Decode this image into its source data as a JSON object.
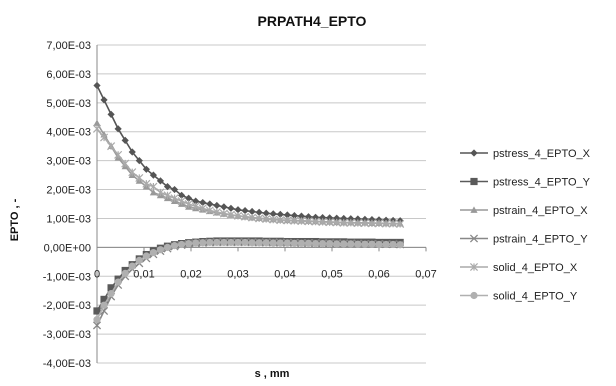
{
  "chart_data": {
    "type": "line",
    "title": "PRPATH4_EPTO",
    "xlabel": "s , mm",
    "ylabel": "EPTO , -",
    "xlim": [
      0,
      0.07
    ],
    "ylim": [
      -0.004,
      0.007
    ],
    "x_tick_labels": [
      "0",
      "0,01",
      "0,02",
      "0,03",
      "0,04",
      "0,05",
      "0,06",
      "0,07"
    ],
    "y_tick_labels": [
      "-4,00E-03",
      "-3,00E-03",
      "-2,00E-03",
      "-1,00E-03",
      "0,00E+00",
      "1,00E-03",
      "2,00E-03",
      "3,00E-03",
      "4,00E-03",
      "5,00E-03",
      "6,00E-03",
      "7,00E-03"
    ],
    "grid": "horizontal",
    "legend_position": "right",
    "x_start": 0,
    "x_step": 0.0015,
    "series": [
      {
        "name": "pstress_4_EPTO_X",
        "marker": "diamond",
        "color": "#555555",
        "values": [
          0.0056,
          0.0051,
          0.0046,
          0.0041,
          0.0037,
          0.0033,
          0.003,
          0.0027,
          0.0025,
          0.0023,
          0.0021,
          0.002,
          0.0018,
          0.0017,
          0.0016,
          0.00155,
          0.0015,
          0.00145,
          0.0014,
          0.00135,
          0.0013,
          0.00127,
          0.00124,
          0.00121,
          0.00118,
          0.00116,
          0.00114,
          0.00112,
          0.0011,
          0.00108,
          0.00106,
          0.00104,
          0.00103,
          0.00102,
          0.00101,
          0.001,
          0.00099,
          0.00098,
          0.00097,
          0.00096,
          0.00095,
          0.00094,
          0.00093,
          0.00092
        ]
      },
      {
        "name": "pstress_4_EPTO_Y",
        "marker": "square",
        "color": "#5a5a5a",
        "values": [
          -0.0022,
          -0.0018,
          -0.0014,
          -0.0011,
          -0.0008,
          -0.0006,
          -0.0004,
          -0.00025,
          -0.00012,
          -3e-05,
          4e-05,
          9e-05,
          0.00013,
          0.00016,
          0.00018,
          0.0002,
          0.00021,
          0.00022,
          0.00022,
          0.00022,
          0.00022,
          0.00022,
          0.00022,
          0.00022,
          0.00021,
          0.00021,
          0.00021,
          0.0002,
          0.0002,
          0.0002,
          0.0002,
          0.0002,
          0.00019,
          0.00019,
          0.00019,
          0.00019,
          0.00018,
          0.00018,
          0.00018,
          0.00018,
          0.00017,
          0.00017,
          0.00017,
          0.00017
        ]
      },
      {
        "name": "pstrain_4_EPTO_X",
        "marker": "triangle",
        "color": "#999999",
        "values": [
          0.0043,
          0.0039,
          0.0035,
          0.0031,
          0.0028,
          0.0025,
          0.0023,
          0.0021,
          0.0019,
          0.0018,
          0.0017,
          0.0016,
          0.0015,
          0.0014,
          0.00135,
          0.0013,
          0.00125,
          0.0012,
          0.00116,
          0.00112,
          0.00109,
          0.00106,
          0.00103,
          0.00101,
          0.00099,
          0.00097,
          0.00095,
          0.00094,
          0.00093,
          0.00092,
          0.00091,
          0.0009,
          0.00089,
          0.00088,
          0.00087,
          0.00086,
          0.00086,
          0.00085,
          0.00085,
          0.00084,
          0.00084,
          0.00083,
          0.00083,
          0.00082
        ]
      },
      {
        "name": "pstrain_4_EPTO_Y",
        "marker": "x",
        "color": "#888888",
        "values": [
          -0.0027,
          -0.0022,
          -0.0017,
          -0.0013,
          -0.001,
          -0.00075,
          -0.00055,
          -0.00038,
          -0.00024,
          -0.00013,
          -4e-05,
          3e-05,
          8e-05,
          0.00012,
          0.00014,
          0.00016,
          0.00017,
          0.00018,
          0.00018,
          0.00018,
          0.00018,
          0.00018,
          0.00018,
          0.00017,
          0.00017,
          0.00017,
          0.00016,
          0.00016,
          0.00016,
          0.00015,
          0.00015,
          0.00015,
          0.00014,
          0.00014,
          0.00014,
          0.00013,
          0.00013,
          0.00013,
          0.00012,
          0.00012,
          0.00012,
          0.00011,
          0.00011,
          0.0001
        ]
      },
      {
        "name": "solid_4_EPTO_X",
        "marker": "star",
        "color": "#aaaaaa",
        "values": [
          0.0041,
          0.0038,
          0.0035,
          0.0032,
          0.0029,
          0.0026,
          0.0024,
          0.0022,
          0.0021,
          0.0019,
          0.0018,
          0.0017,
          0.0016,
          0.0015,
          0.00142,
          0.00135,
          0.00128,
          0.00122,
          0.00117,
          0.00113,
          0.00109,
          0.00106,
          0.00103,
          0.001,
          0.00098,
          0.00096,
          0.00094,
          0.00093,
          0.00092,
          0.00091,
          0.0009,
          0.00089,
          0.00088,
          0.00087,
          0.00086,
          0.00085,
          0.00085,
          0.00084,
          0.00084,
          0.00083,
          0.00083,
          0.00082,
          0.00082,
          0.00081
        ]
      },
      {
        "name": "solid_4_EPTO_Y",
        "marker": "circle",
        "color": "#b0b0b0",
        "values": [
          -0.0025,
          -0.002,
          -0.0016,
          -0.0012,
          -0.0009,
          -0.00065,
          -0.00045,
          -0.0003,
          -0.00018,
          -8e-05,
          0.0,
          6e-05,
          0.0001,
          0.00013,
          0.00015,
          0.00016,
          0.00017,
          0.00017,
          0.00017,
          0.00017,
          0.00017,
          0.00017,
          0.00016,
          0.00016,
          0.00016,
          0.00015,
          0.00015,
          0.00015,
          0.00014,
          0.00014,
          0.00014,
          0.00013,
          0.00013,
          0.00013,
          0.00012,
          0.00012,
          0.00012,
          0.00011,
          0.00011,
          0.00011,
          0.0001,
          0.0001,
          0.0001,
          9e-05
        ]
      }
    ]
  }
}
